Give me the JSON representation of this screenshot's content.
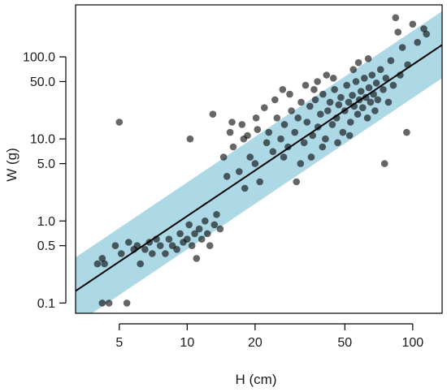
{
  "chart_data": {
    "type": "scatter",
    "xlabel": "H (cm)",
    "ylabel": "W (g)",
    "x_scale": "log",
    "y_scale": "log",
    "xlim": [
      3.2,
      135
    ],
    "ylim": [
      0.075,
      430
    ],
    "x_ticks": [
      5,
      10,
      20,
      50,
      100
    ],
    "x_tick_labels": [
      "5",
      "10",
      "20",
      "50",
      "100"
    ],
    "y_ticks": [
      0.1,
      0.5,
      1.0,
      5.0,
      10.0,
      50.0,
      100.0
    ],
    "y_tick_labels": [
      "0.1",
      "0.5",
      "1.0",
      "5.0",
      "10.0",
      "50.0",
      "100.0"
    ],
    "grid": false,
    "fit_line": {
      "x": [
        3.2,
        135
      ],
      "y": [
        0.14,
        140
      ]
    },
    "prediction_band": {
      "x": [
        3.2,
        135
      ],
      "lower": [
        0.055,
        55
      ],
      "upper": [
        0.36,
        360
      ]
    },
    "colors": {
      "band": "#add8e6",
      "points": "#000000",
      "line": "#000000"
    },
    "points": [
      [
        4.2,
        0.1
      ],
      [
        4.5,
        0.1
      ],
      [
        4.0,
        0.3
      ],
      [
        4.3,
        0.3
      ],
      [
        4.8,
        0.5
      ],
      [
        4.2,
        0.35
      ],
      [
        5.1,
        0.4
      ],
      [
        5.4,
        0.1
      ],
      [
        5.5,
        0.55
      ],
      [
        5.0,
        16
      ],
      [
        5.8,
        0.45
      ],
      [
        6.0,
        0.5
      ],
      [
        6.2,
        0.3
      ],
      [
        6.5,
        0.45
      ],
      [
        6.8,
        0.55
      ],
      [
        7.0,
        0.4
      ],
      [
        7.3,
        0.6
      ],
      [
        7.6,
        0.5
      ],
      [
        8.0,
        0.4
      ],
      [
        8.3,
        0.6
      ],
      [
        8.6,
        0.5
      ],
      [
        9.0,
        0.45
      ],
      [
        9.3,
        0.7
      ],
      [
        9.6,
        0.55
      ],
      [
        10.0,
        0.6
      ],
      [
        10.2,
        0.9
      ],
      [
        10.5,
        0.5
      ],
      [
        10.8,
        0.7
      ],
      [
        11.0,
        0.35
      ],
      [
        11.3,
        0.8
      ],
      [
        11.6,
        0.6
      ],
      [
        12.0,
        1.0
      ],
      [
        12.3,
        0.7
      ],
      [
        12.6,
        0.5
      ],
      [
        10.3,
        10
      ],
      [
        13.0,
        20
      ],
      [
        13.2,
        0.9
      ],
      [
        13.5,
        1.2
      ],
      [
        14.0,
        0.8
      ],
      [
        14.5,
        6
      ],
      [
        15.0,
        3.5
      ],
      [
        15.5,
        12
      ],
      [
        16.0,
        8
      ],
      [
        17.0,
        4
      ],
      [
        17.5,
        15
      ],
      [
        18.0,
        2.5
      ],
      [
        18.5,
        11
      ],
      [
        19.0,
        6
      ],
      [
        20.0,
        5
      ],
      [
        20.5,
        13
      ],
      [
        21.0,
        3
      ],
      [
        22.0,
        24
      ],
      [
        22.5,
        9
      ],
      [
        23.0,
        12
      ],
      [
        24.0,
        7
      ],
      [
        25.0,
        18
      ],
      [
        26.0,
        10
      ],
      [
        26.5,
        40
      ],
      [
        27.0,
        15
      ],
      [
        28.0,
        8
      ],
      [
        29.0,
        22
      ],
      [
        30.0,
        12
      ],
      [
        30.5,
        3
      ],
      [
        31.0,
        18
      ],
      [
        32.0,
        28
      ],
      [
        33.0,
        9
      ],
      [
        34.0,
        16
      ],
      [
        35.0,
        25
      ],
      [
        36.0,
        11
      ],
      [
        37.0,
        30
      ],
      [
        38.0,
        14
      ],
      [
        39.0,
        20
      ],
      [
        40.0,
        35
      ],
      [
        41.0,
        10
      ],
      [
        42.0,
        22
      ],
      [
        43.0,
        28
      ],
      [
        44.0,
        15
      ],
      [
        45.0,
        40
      ],
      [
        46.0,
        18
      ],
      [
        47.0,
        26
      ],
      [
        48.0,
        32
      ],
      [
        49.0,
        12
      ],
      [
        50.0,
        22
      ],
      [
        51.0,
        45
      ],
      [
        52.0,
        28
      ],
      [
        53.0,
        16
      ],
      [
        54.0,
        34
      ],
      [
        55.0,
        25
      ],
      [
        56.0,
        50
      ],
      [
        57.0,
        20
      ],
      [
        58.0,
        30
      ],
      [
        59.0,
        38
      ],
      [
        60.0,
        24
      ],
      [
        61.0,
        55
      ],
      [
        62.0,
        32
      ],
      [
        63.0,
        18
      ],
      [
        64.0,
        42
      ],
      [
        65.0,
        28
      ],
      [
        66.0,
        60
      ],
      [
        67.0,
        35
      ],
      [
        68.0,
        22
      ],
      [
        69.0,
        48
      ],
      [
        70.0,
        30
      ],
      [
        72.0,
        70
      ],
      [
        74.0,
        40
      ],
      [
        75.0,
        5
      ],
      [
        76.0,
        55
      ],
      [
        78.0,
        28
      ],
      [
        80.0,
        90
      ],
      [
        82.0,
        45
      ],
      [
        84.0,
        300
      ],
      [
        86.0,
        200
      ],
      [
        88.0,
        60
      ],
      [
        90.0,
        130
      ],
      [
        94.0,
        12
      ],
      [
        95.0,
        80
      ],
      [
        100.0,
        250
      ],
      [
        105.0,
        150
      ],
      [
        112.0,
        220
      ],
      [
        115.0,
        190
      ],
      [
        28.5,
        35
      ],
      [
        33.5,
        45
      ],
      [
        36.5,
        40
      ],
      [
        24.5,
        30
      ],
      [
        20.2,
        18
      ],
      [
        17.8,
        10
      ],
      [
        15.8,
        16
      ],
      [
        44.5,
        55
      ],
      [
        41.5,
        60
      ],
      [
        37.8,
        50
      ],
      [
        54.5,
        70
      ],
      [
        57.5,
        85
      ],
      [
        63.5,
        95
      ],
      [
        26.8,
        6
      ],
      [
        31.8,
        5
      ],
      [
        35.5,
        6
      ],
      [
        39.8,
        8
      ],
      [
        46.5,
        9
      ],
      [
        52.5,
        11
      ]
    ]
  }
}
